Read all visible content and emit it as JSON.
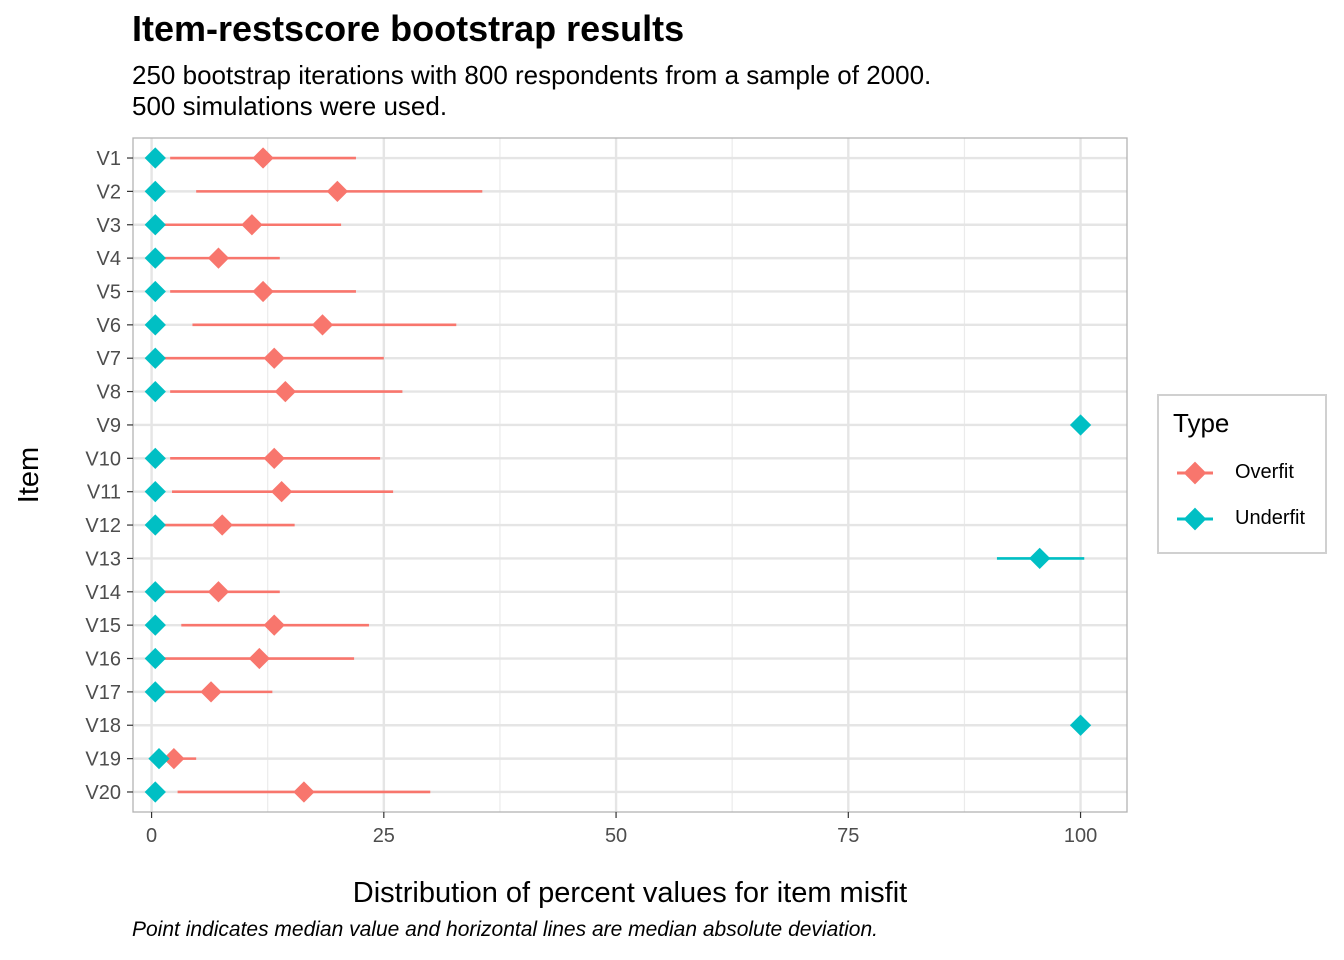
{
  "chart_data": {
    "type": "scatter",
    "title": "Item-restscore bootstrap results",
    "subtitle_lines": [
      "250 bootstrap iterations with 800 respondents from a sample of 2000.",
      "500 simulations were used."
    ],
    "caption": "Point indicates median value and horizontal lines are median absolute deviation.",
    "xlabel": "Distribution of percent values for item misfit",
    "ylabel": "Item",
    "xlim": [
      -2,
      105
    ],
    "x_ticks": [
      0,
      25,
      50,
      75,
      100
    ],
    "x_tick_labels": [
      "0",
      "25",
      "50",
      "75",
      "100"
    ],
    "categories": [
      "V1",
      "V2",
      "V3",
      "V4",
      "V5",
      "V6",
      "V7",
      "V8",
      "V9",
      "V10",
      "V11",
      "V12",
      "V13",
      "V14",
      "V15",
      "V16",
      "V17",
      "V18",
      "V19",
      "V20"
    ],
    "grid": true,
    "legend": {
      "title": "Type",
      "position": "right"
    },
    "series": [
      {
        "name": "Overfit",
        "color": "#F8766D",
        "median": [
          12,
          20,
          10.8,
          7.2,
          12,
          18.4,
          13.2,
          14.4,
          null,
          13.2,
          14,
          7.6,
          null,
          7.2,
          13.2,
          11.6,
          6.4,
          null,
          2.4,
          16.4
        ],
        "low": [
          2,
          4.8,
          0.4,
          0.4,
          2,
          4.4,
          0.4,
          2,
          null,
          2,
          2.2,
          0,
          null,
          0.4,
          3.2,
          0.4,
          0,
          null,
          0.8,
          2.8
        ],
        "high": [
          22,
          35.6,
          20.4,
          13.8,
          22,
          32.8,
          25,
          27,
          null,
          24.6,
          26,
          15.4,
          null,
          13.8,
          23.4,
          21.8,
          13,
          null,
          4.8,
          30
        ]
      },
      {
        "name": "Underfit",
        "color": "#00BFC4",
        "median": [
          0.4,
          0.4,
          0.4,
          0.4,
          0.4,
          0.4,
          0.4,
          0.4,
          100,
          0.4,
          0.4,
          0.4,
          95.6,
          0.4,
          0.4,
          0.4,
          0.4,
          100,
          0.8,
          0.4
        ],
        "low": [
          null,
          null,
          null,
          null,
          null,
          null,
          null,
          null,
          null,
          null,
          null,
          null,
          91,
          null,
          null,
          null,
          null,
          null,
          null,
          null
        ],
        "high": [
          null,
          null,
          null,
          null,
          null,
          null,
          null,
          null,
          null,
          null,
          null,
          null,
          100.4,
          null,
          null,
          null,
          null,
          null,
          null,
          null
        ]
      }
    ]
  }
}
